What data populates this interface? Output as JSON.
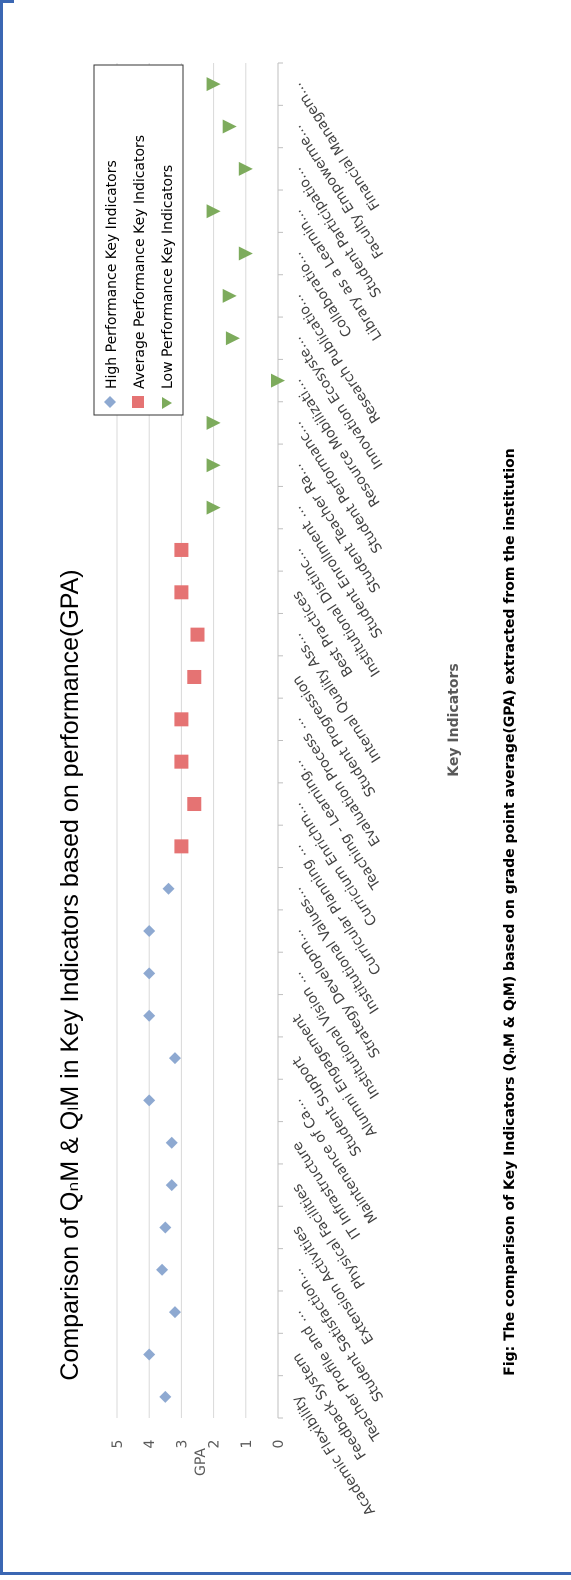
{
  "chart_data": {
    "type": "scatter",
    "title": "Comparison of QₙM & QₗM in Key Indicators based on performance(GPA)",
    "xlabel": "Key Indicators",
    "ylabel": "GPA",
    "ylim": [
      0,
      5
    ],
    "yticks": [
      "0",
      "1",
      "2",
      "3",
      "4",
      "5"
    ],
    "grid": true,
    "legend_position": "top-right",
    "categories": [
      "Academic Flexibility",
      "Feedback System",
      "Teacher Profile and ...",
      "Student Satisfaction...",
      "Extension Activities",
      "Physical Facilities",
      "IT Infrastructure",
      "Maintenance of Ca...",
      "Student Support",
      "Alumni Engagement",
      "Institutional Vision ...",
      "Strategy Developm...",
      "Institutional Values...",
      "Curricular Planning ...",
      "Curricium Enrichm...",
      "Teaching - Learning...",
      "Evaluation Process ...",
      "Student Progression",
      "Internal Quality Ass...",
      "Best Practices",
      "Institutional Distinc...",
      "Student Enrollment ...",
      "Student Teacher Ra...",
      "Student Performanc...",
      "Resource Mobilizati...",
      "Innovation Ecosyste...",
      "Research Publicatio...",
      "Collaboratio...",
      "Library as a Learnin...",
      "Student Participatio...",
      "Faculty Empowerme...",
      "Financial Managem..."
    ],
    "series": [
      {
        "name": "High Performance Key Indicators",
        "marker": "diamond",
        "color": "#8ea9d1",
        "start_index": 0,
        "values": [
          3.5,
          4.0,
          3.2,
          3.6,
          3.5,
          3.3,
          3.3,
          4.0,
          3.2,
          4.0,
          4.0,
          4.0,
          3.4
        ]
      },
      {
        "name": "Average Performance Key Indicators",
        "marker": "square",
        "color": "#e57373",
        "start_index": 13,
        "values": [
          3.0,
          2.6,
          3.0,
          3.0,
          2.6,
          2.5,
          3.0,
          3.0
        ]
      },
      {
        "name": "Low Performance Key Indicators",
        "marker": "triangle",
        "color": "#7dab5c",
        "start_index": 21,
        "values": [
          2.0,
          2.0,
          2.0,
          0.0,
          1.4,
          1.5,
          1.0,
          2.0,
          1.0,
          1.5,
          2.0
        ]
      }
    ]
  },
  "caption": "Fig: The comparison of Key Indicators (QₙM & QₗM) based on grade point average(GPA) extracted from the institution"
}
